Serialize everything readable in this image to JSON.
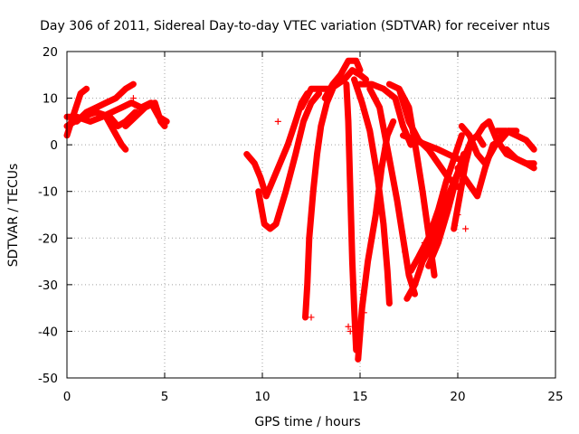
{
  "chart_data": {
    "type": "scatter",
    "title": "Day 306 of 2011, Sidereal Day-to-day VTEC variation (SDTVAR) for receiver ntus",
    "xlabel": "GPS time / hours",
    "ylabel": "SDTVAR / TECUs",
    "xlim": [
      0,
      25
    ],
    "ylim": [
      -50,
      20
    ],
    "xticks": [
      0,
      5,
      10,
      15,
      20,
      25
    ],
    "yticks": [
      -50,
      -40,
      -30,
      -20,
      -10,
      0,
      10,
      20
    ],
    "grid": true,
    "marker": "+",
    "series": [
      {
        "color": "#ff0000",
        "tracks": [
          [
            [
              0.0,
              2
            ],
            [
              0.3,
              6
            ],
            [
              0.7,
              11
            ],
            [
              1.0,
              12
            ]
          ],
          [
            [
              0.0,
              4
            ],
            [
              0.4,
              5
            ],
            [
              0.8,
              6
            ],
            [
              1.5,
              7
            ],
            [
              2.2,
              6
            ],
            [
              2.6,
              4
            ],
            [
              3.0,
              5
            ],
            [
              3.5,
              7
            ]
          ],
          [
            [
              0.0,
              6
            ],
            [
              0.5,
              6
            ],
            [
              1.2,
              5
            ],
            [
              1.8,
              6
            ],
            [
              2.3,
              7
            ],
            [
              2.8,
              8
            ],
            [
              3.3,
              9
            ],
            [
              3.8,
              8
            ],
            [
              4.3,
              9
            ],
            [
              4.7,
              6
            ],
            [
              5.1,
              5
            ]
          ],
          [
            [
              0.5,
              5
            ],
            [
              1.0,
              7
            ],
            [
              1.5,
              8
            ],
            [
              2.0,
              9
            ],
            [
              2.5,
              10
            ],
            [
              3.0,
              12
            ],
            [
              3.4,
              13
            ]
          ],
          [
            [
              1.5,
              7
            ],
            [
              2.0,
              6
            ],
            [
              2.4,
              3
            ],
            [
              2.8,
              0
            ],
            [
              3.0,
              -1
            ]
          ],
          [
            [
              3.0,
              4
            ],
            [
              3.5,
              6
            ],
            [
              4.0,
              8
            ],
            [
              4.5,
              9
            ],
            [
              4.8,
              5
            ],
            [
              5.0,
              4
            ]
          ],
          [
            [
              9.2,
              -2
            ],
            [
              9.6,
              -4
            ],
            [
              9.9,
              -7
            ],
            [
              10.2,
              -11
            ],
            [
              10.4,
              -9
            ],
            [
              10.8,
              -5
            ],
            [
              11.3,
              0
            ],
            [
              11.7,
              5
            ],
            [
              12.0,
              9
            ],
            [
              12.3,
              11
            ]
          ],
          [
            [
              9.8,
              -10
            ],
            [
              10.1,
              -17
            ],
            [
              10.4,
              -18
            ],
            [
              10.7,
              -17
            ],
            [
              11.2,
              -10
            ],
            [
              11.7,
              -2
            ],
            [
              12.1,
              5
            ],
            [
              12.5,
              9
            ],
            [
              12.9,
              11
            ]
          ],
          [
            [
              12.2,
              -37
            ],
            [
              12.3,
              -30
            ],
            [
              12.4,
              -20
            ],
            [
              12.6,
              -10
            ],
            [
              12.8,
              -2
            ],
            [
              13.0,
              4
            ],
            [
              13.3,
              9
            ],
            [
              13.6,
              12
            ]
          ],
          [
            [
              12.0,
              8
            ],
            [
              12.5,
              12
            ],
            [
              13.5,
              12
            ],
            [
              14.2,
              14
            ],
            [
              14.6,
              16
            ],
            [
              15.0,
              15
            ],
            [
              15.3,
              14
            ]
          ],
          [
            [
              13.2,
              10
            ],
            [
              13.6,
              13
            ],
            [
              14.0,
              15
            ],
            [
              14.4,
              18
            ],
            [
              14.8,
              18
            ],
            [
              15.0,
              16
            ]
          ],
          [
            [
              14.3,
              13
            ],
            [
              14.4,
              5
            ],
            [
              14.5,
              -10
            ],
            [
              14.6,
              -25
            ],
            [
              14.7,
              -35
            ],
            [
              14.8,
              -44
            ]
          ],
          [
            [
              14.9,
              -46
            ],
            [
              15.1,
              -35
            ],
            [
              15.4,
              -25
            ],
            [
              15.8,
              -15
            ],
            [
              16.1,
              -5
            ],
            [
              16.4,
              2
            ],
            [
              16.7,
              5
            ]
          ],
          [
            [
              14.7,
              14
            ],
            [
              15.1,
              9
            ],
            [
              15.5,
              3
            ],
            [
              15.9,
              -7
            ],
            [
              16.2,
              -17
            ],
            [
              16.4,
              -27
            ],
            [
              16.5,
              -34
            ]
          ],
          [
            [
              15.0,
              13
            ],
            [
              15.6,
              13
            ],
            [
              16.2,
              12
            ],
            [
              16.8,
              10
            ],
            [
              17.2,
              4
            ],
            [
              17.6,
              0
            ]
          ],
          [
            [
              15.5,
              12
            ],
            [
              16.0,
              8
            ],
            [
              16.5,
              -3
            ],
            [
              16.9,
              -12
            ],
            [
              17.2,
              -20
            ],
            [
              17.5,
              -28
            ],
            [
              17.8,
              -32
            ]
          ],
          [
            [
              16.5,
              13
            ],
            [
              17.0,
              12
            ],
            [
              17.5,
              8
            ],
            [
              17.9,
              -2
            ],
            [
              18.2,
              -10
            ],
            [
              18.6,
              -22
            ],
            [
              18.8,
              -28
            ]
          ],
          [
            [
              17.0,
              12
            ],
            [
              17.5,
              5
            ],
            [
              18.0,
              1
            ],
            [
              18.5,
              -1
            ],
            [
              19.0,
              -4
            ],
            [
              19.5,
              -7
            ],
            [
              20.0,
              -9
            ]
          ],
          [
            [
              17.2,
              2
            ],
            [
              17.8,
              1
            ],
            [
              18.4,
              0
            ],
            [
              19.0,
              -1
            ],
            [
              19.5,
              -2
            ],
            [
              20.0,
              -3
            ]
          ],
          [
            [
              17.4,
              -33
            ],
            [
              17.8,
              -30
            ],
            [
              18.2,
              -25
            ],
            [
              18.6,
              -22
            ],
            [
              19.0,
              -17
            ],
            [
              19.5,
              -11
            ],
            [
              20.0,
              -6
            ],
            [
              20.3,
              -2
            ]
          ],
          [
            [
              17.6,
              -27
            ],
            [
              18.0,
              -24
            ],
            [
              18.5,
              -20
            ],
            [
              19.0,
              -14
            ],
            [
              19.4,
              -8
            ],
            [
              19.8,
              -3
            ],
            [
              20.2,
              2
            ]
          ],
          [
            [
              18.5,
              -26
            ],
            [
              19.0,
              -21
            ],
            [
              19.5,
              -14
            ],
            [
              20.0,
              -6
            ],
            [
              20.4,
              -2
            ],
            [
              20.7,
              1
            ]
          ],
          [
            [
              19.8,
              -18
            ],
            [
              20.1,
              -11
            ],
            [
              20.4,
              -4
            ],
            [
              20.7,
              1
            ],
            [
              21.0,
              2
            ],
            [
              21.3,
              0
            ]
          ],
          [
            [
              20.0,
              -5
            ],
            [
              20.5,
              -8
            ],
            [
              21.0,
              -11
            ],
            [
              21.4,
              -5
            ],
            [
              21.8,
              0
            ],
            [
              22.2,
              1
            ],
            [
              22.6,
              3
            ]
          ],
          [
            [
              20.2,
              4
            ],
            [
              20.6,
              2
            ],
            [
              21.0,
              -2
            ],
            [
              21.4,
              -4
            ],
            [
              21.8,
              -1
            ],
            [
              22.2,
              2
            ],
            [
              22.6,
              3
            ],
            [
              23.0,
              3
            ]
          ],
          [
            [
              21.0,
              2
            ],
            [
              21.3,
              4
            ],
            [
              21.6,
              5
            ],
            [
              22.0,
              1
            ],
            [
              22.5,
              -2
            ],
            [
              23.0,
              -3
            ],
            [
              23.5,
              -4
            ],
            [
              23.9,
              -4
            ]
          ],
          [
            [
              22.0,
              3
            ],
            [
              22.5,
              3
            ],
            [
              23.0,
              2
            ],
            [
              23.5,
              1
            ],
            [
              23.9,
              -1
            ]
          ],
          [
            [
              22.5,
              -1
            ],
            [
              23.0,
              -3
            ],
            [
              23.5,
              -4
            ],
            [
              23.9,
              -5
            ]
          ]
        ],
        "outliers": [
          [
            3.4,
            10
          ],
          [
            3.6,
            8
          ],
          [
            10.8,
            5
          ],
          [
            17.3,
            -23
          ],
          [
            18.3,
            -21
          ],
          [
            20.4,
            -18
          ],
          [
            14.4,
            -39
          ],
          [
            14.5,
            -40
          ],
          [
            12.5,
            -37
          ],
          [
            15.2,
            -36
          ],
          [
            20.0,
            -15
          ]
        ]
      }
    ]
  }
}
